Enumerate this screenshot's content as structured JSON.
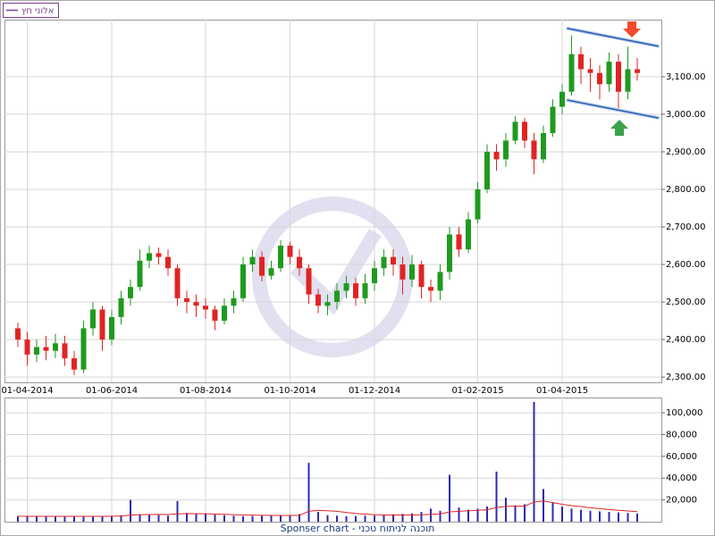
{
  "chart_data": {
    "type": "candlestick",
    "name": "אלוני חץ",
    "legend_color": "#7b3f8f",
    "up_color": "#1f9a1f",
    "down_color": "#e02424",
    "grid": true,
    "categories": [
      null,
      "01-04-2014",
      null,
      null,
      null,
      null,
      null,
      null,
      null,
      null,
      "01-06-2014",
      null,
      null,
      null,
      null,
      null,
      null,
      null,
      null,
      null,
      "01-08-2014",
      null,
      null,
      null,
      null,
      null,
      null,
      null,
      null,
      "01-10-2014",
      null,
      null,
      null,
      null,
      null,
      null,
      null,
      null,
      "01-12-2014",
      null,
      null,
      null,
      null,
      null,
      null,
      null,
      null,
      null,
      null,
      "01-02-2015",
      null,
      null,
      null,
      null,
      null,
      null,
      null,
      null,
      "01-04-2015",
      null,
      null,
      null,
      null,
      null,
      null,
      null,
      null
    ],
    "open": [
      2430,
      2400,
      2360,
      2380,
      2370,
      2390,
      2350,
      2320,
      2430,
      2480,
      2400,
      2460,
      2510,
      2540,
      2610,
      2630,
      2620,
      2590,
      2510,
      2500,
      2490,
      2480,
      2450,
      2490,
      2510,
      2600,
      2620,
      2570,
      2590,
      2650,
      2620,
      2590,
      2520,
      2490,
      2500,
      2530,
      2550,
      2510,
      2550,
      2590,
      2620,
      2600,
      2560,
      2600,
      2540,
      2530,
      2580,
      2680,
      2640,
      2720,
      2800,
      2900,
      2880,
      2930,
      2980,
      2930,
      2880,
      2950,
      3020,
      3060,
      3160,
      3120,
      3110,
      3080,
      3140,
      3060,
      3120
    ],
    "high": [
      2445,
      2420,
      2400,
      2410,
      2415,
      2410,
      2370,
      2450,
      2500,
      2490,
      2480,
      2530,
      2560,
      2640,
      2650,
      2645,
      2640,
      2600,
      2530,
      2520,
      2510,
      2490,
      2510,
      2530,
      2620,
      2640,
      2635,
      2610,
      2665,
      2660,
      2640,
      2600,
      2535,
      2520,
      2550,
      2570,
      2565,
      2575,
      2610,
      2640,
      2640,
      2620,
      2625,
      2610,
      2560,
      2600,
      2700,
      2700,
      2740,
      2820,
      2920,
      2920,
      2950,
      2995,
      2990,
      2950,
      2970,
      3040,
      3080,
      3210,
      3180,
      3150,
      3130,
      3165,
      3160,
      3180,
      3150
    ],
    "low": [
      2380,
      2330,
      2340,
      2345,
      2350,
      2330,
      2305,
      2310,
      2410,
      2370,
      2385,
      2440,
      2490,
      2530,
      2590,
      2600,
      2570,
      2490,
      2470,
      2460,
      2455,
      2425,
      2440,
      2470,
      2500,
      2580,
      2555,
      2560,
      2580,
      2600,
      2570,
      2495,
      2470,
      2465,
      2480,
      2510,
      2490,
      2495,
      2530,
      2570,
      2570,
      2520,
      2540,
      2510,
      2500,
      2505,
      2560,
      2620,
      2630,
      2710,
      2790,
      2850,
      2860,
      2920,
      2910,
      2840,
      2870,
      2940,
      3000,
      3050,
      3080,
      3060,
      3040,
      3060,
      3010,
      3040,
      3090
    ],
    "close": [
      2400,
      2360,
      2380,
      2370,
      2390,
      2350,
      2320,
      2430,
      2480,
      2400,
      2460,
      2510,
      2540,
      2610,
      2630,
      2620,
      2590,
      2510,
      2500,
      2490,
      2480,
      2450,
      2490,
      2510,
      2600,
      2620,
      2570,
      2590,
      2650,
      2620,
      2590,
      2520,
      2490,
      2500,
      2530,
      2550,
      2510,
      2550,
      2590,
      2620,
      2600,
      2560,
      2600,
      2540,
      2530,
      2580,
      2680,
      2640,
      2720,
      2800,
      2900,
      2880,
      2930,
      2980,
      2930,
      2880,
      2950,
      3020,
      3060,
      3160,
      3120,
      3110,
      3080,
      3140,
      3060,
      3120,
      3110
    ],
    "ylim": [
      2286,
      3252
    ],
    "yticks": [
      {
        "value": 2300,
        "label": "2,300.00"
      },
      {
        "value": 2400,
        "label": "2,400.00"
      },
      {
        "value": 2500,
        "label": "2,500.00"
      },
      {
        "value": 2600,
        "label": "2,600.00"
      },
      {
        "value": 2700,
        "label": "2,700.00"
      },
      {
        "value": 2800,
        "label": "2,800.00"
      },
      {
        "value": 2900,
        "label": "2,900.00"
      },
      {
        "value": 3000,
        "label": "3,000.00"
      },
      {
        "value": 3100,
        "label": "3,100.00"
      }
    ],
    "channel": [
      {
        "x": [
          58.5,
          68.3
        ],
        "y": [
          3229,
          3181
        ],
        "color": "#2a5db0"
      },
      {
        "x": [
          58.5,
          68.3
        ],
        "y": [
          3038,
          2990
        ],
        "color": "#2a5db0"
      }
    ],
    "volume": {
      "color": "#2b2bb0",
      "values": [
        5000,
        4500,
        5000,
        4800,
        5200,
        4600,
        4700,
        5100,
        4900,
        5300,
        5000,
        6000,
        20000,
        7000,
        6500,
        6000,
        5500,
        19000,
        8000,
        7000,
        7500,
        6500,
        6000,
        5500,
        5000,
        5200,
        5400,
        5800,
        6200,
        6000,
        7000,
        54000,
        9000,
        6000,
        5500,
        5000,
        5200,
        5600,
        5800,
        6400,
        6800,
        7200,
        7600,
        9000,
        12000,
        10000,
        43000,
        13000,
        11000,
        12000,
        14000,
        46000,
        22000,
        15000,
        16000,
        110000,
        30000,
        18000,
        14000,
        12000,
        11000,
        10000,
        9500,
        9000,
        8500,
        8000,
        7500
      ],
      "ma_color": "#e02424",
      "ma": [
        5000,
        4900,
        4900,
        4900,
        4900,
        4900,
        4900,
        4900,
        4900,
        4950,
        5000,
        5200,
        6000,
        6500,
        6600,
        6700,
        6600,
        7200,
        7500,
        7400,
        7300,
        7100,
        6800,
        6500,
        6200,
        6000,
        5800,
        5700,
        5700,
        5700,
        5800,
        9500,
        10500,
        10000,
        9500,
        8500,
        7600,
        7000,
        6500,
        6200,
        6100,
        6100,
        6200,
        6400,
        6800,
        7200,
        9000,
        9500,
        10000,
        10500,
        11000,
        13000,
        14000,
        14200,
        14500,
        18000,
        19000,
        17500,
        16000,
        14800,
        13800,
        12800,
        12000,
        11200,
        10500,
        9800,
        9200
      ],
      "ylim": [
        0,
        114000
      ],
      "yticks": [
        {
          "value": 20000,
          "label": "20,000"
        },
        {
          "value": 40000,
          "label": "40,000"
        },
        {
          "value": 60000,
          "label": "60,000"
        },
        {
          "value": 80000,
          "label": "80,000"
        },
        {
          "value": 100000,
          "label": "100,000"
        }
      ]
    },
    "footer": "Sponser chart - תוכנה לניתוח טכני"
  }
}
